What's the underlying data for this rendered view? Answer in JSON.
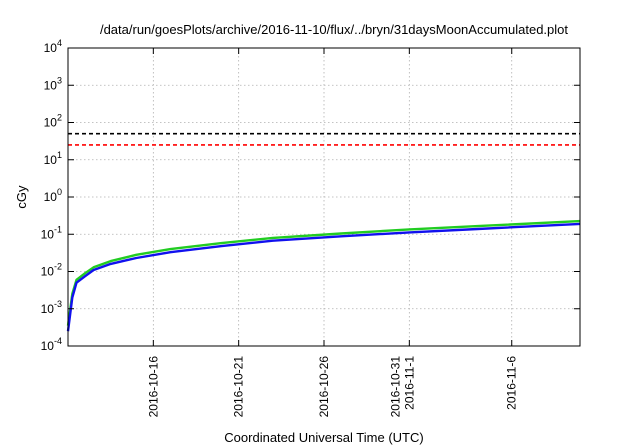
{
  "chart_data": {
    "type": "line",
    "title": "/data/run/goesPlots/archive/2016-11-10/flux/../bryn/31daysMoonAccumulated.plot",
    "xlabel": "Coordinated Universal Time (UTC)",
    "ylabel": "cGy",
    "yscale": "log",
    "ylim": [
      0.0001,
      10000
    ],
    "xlim": [
      "2016-10-11",
      "2016-11-10"
    ],
    "grid": true,
    "y_ticks": [
      {
        "value": 0.0001,
        "base": "10",
        "exp": "-4"
      },
      {
        "value": 0.001,
        "base": "10",
        "exp": "-3"
      },
      {
        "value": 0.01,
        "base": "10",
        "exp": "-2"
      },
      {
        "value": 0.1,
        "base": "10",
        "exp": "-1"
      },
      {
        "value": 1,
        "base": "10",
        "exp": "0"
      },
      {
        "value": 10,
        "base": "10",
        "exp": "1"
      },
      {
        "value": 100,
        "base": "10",
        "exp": "2"
      },
      {
        "value": 1000,
        "base": "10",
        "exp": "3"
      },
      {
        "value": 10000,
        "base": "10",
        "exp": "4"
      }
    ],
    "x_ticks": [
      {
        "date": "2016-10-16",
        "labels": [
          "2016-10-16"
        ]
      },
      {
        "date": "2016-10-21",
        "labels": [
          "2016-10-21"
        ]
      },
      {
        "date": "2016-10-26",
        "labels": [
          "2016-10-26"
        ]
      },
      {
        "date": "2016-10-31",
        "labels": [
          "2016-10-31",
          "2016-11-1"
        ]
      },
      {
        "date": "2016-11-06",
        "labels": [
          "2016-11-6"
        ]
      }
    ],
    "reference_lines": [
      {
        "value": 50,
        "color": "#000000",
        "style": "dashed"
      },
      {
        "value": 25,
        "color": "#ff0000",
        "style": "dashed"
      }
    ],
    "series": [
      {
        "color": "#22cc22",
        "points": [
          [
            "2016-10-11 00:00",
            0.00035
          ],
          [
            "2016-10-11 06:00",
            0.0025
          ],
          [
            "2016-10-11 12:00",
            0.006
          ],
          [
            "2016-10-12 00:00",
            0.009
          ],
          [
            "2016-10-12 12:00",
            0.013
          ],
          [
            "2016-10-13 12:00",
            0.019
          ],
          [
            "2016-10-15 00:00",
            0.028
          ],
          [
            "2016-10-17 00:00",
            0.04
          ],
          [
            "2016-10-20 00:00",
            0.058
          ],
          [
            "2016-10-23 00:00",
            0.08
          ],
          [
            "2016-10-27 00:00",
            0.105
          ],
          [
            "2016-10-31 00:00",
            0.135
          ],
          [
            "2016-11-04 00:00",
            0.165
          ],
          [
            "2016-11-10 00:00",
            0.225
          ]
        ]
      },
      {
        "color": "#1111ee",
        "points": [
          [
            "2016-10-11 00:00",
            0.00025
          ],
          [
            "2016-10-11 06:00",
            0.002
          ],
          [
            "2016-10-11 12:00",
            0.005
          ],
          [
            "2016-10-12 00:00",
            0.0075
          ],
          [
            "2016-10-12 12:00",
            0.011
          ],
          [
            "2016-10-13 12:00",
            0.016
          ],
          [
            "2016-10-15 00:00",
            0.023
          ],
          [
            "2016-10-17 00:00",
            0.033
          ],
          [
            "2016-10-20 00:00",
            0.048
          ],
          [
            "2016-10-23 00:00",
            0.067
          ],
          [
            "2016-10-27 00:00",
            0.088
          ],
          [
            "2016-10-31 00:00",
            0.112
          ],
          [
            "2016-11-04 00:00",
            0.138
          ],
          [
            "2016-11-10 00:00",
            0.19
          ]
        ]
      }
    ]
  }
}
